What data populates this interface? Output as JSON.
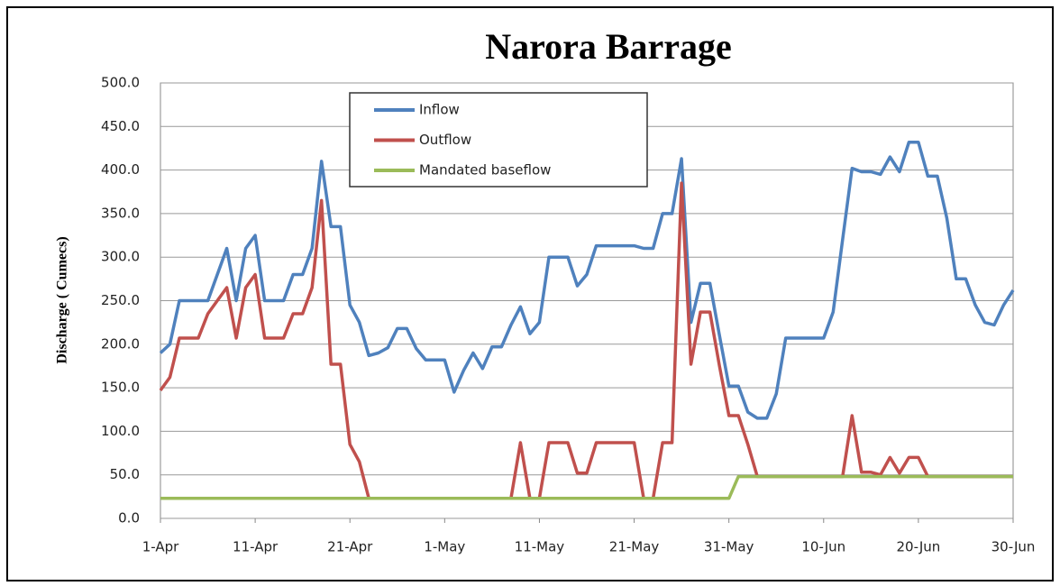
{
  "chart_data": {
    "type": "line",
    "title": "Narora Barrage",
    "y_label": "Discharge ( Cumecs)",
    "categories": [
      "1-Apr",
      null,
      null,
      null,
      null,
      null,
      null,
      null,
      null,
      null,
      "11-Apr",
      null,
      null,
      null,
      null,
      null,
      null,
      null,
      null,
      null,
      "21-Apr",
      null,
      null,
      null,
      null,
      null,
      null,
      null,
      null,
      null,
      "1-May",
      null,
      null,
      null,
      null,
      null,
      null,
      null,
      null,
      null,
      "11-May",
      null,
      null,
      null,
      null,
      null,
      null,
      null,
      null,
      null,
      "21-May",
      null,
      null,
      null,
      null,
      null,
      null,
      null,
      null,
      null,
      "31-May",
      null,
      null,
      null,
      null,
      null,
      null,
      null,
      null,
      null,
      "10-Jun",
      null,
      null,
      null,
      null,
      null,
      null,
      null,
      null,
      null,
      "20-Jun",
      null,
      null,
      null,
      null,
      null,
      null,
      null,
      null,
      null,
      "30-Jun"
    ],
    "series": [
      {
        "name": "Inflow",
        "color": "#4f81bd",
        "values": [
          190,
          200,
          250,
          250,
          250,
          250,
          280,
          310,
          250,
          310,
          325,
          250,
          250,
          250,
          280,
          280,
          310,
          410,
          335,
          335,
          245,
          225,
          187,
          190,
          196,
          218,
          218,
          195,
          182,
          182,
          182,
          145,
          170,
          190,
          172,
          197,
          197,
          222,
          243,
          212,
          225,
          300,
          300,
          300,
          267,
          280,
          313,
          313,
          313,
          313,
          313,
          310,
          310,
          350,
          350,
          413,
          225,
          270,
          270,
          210,
          152,
          152,
          122,
          115,
          115,
          143,
          207,
          207,
          207,
          207,
          207,
          237,
          320,
          402,
          398,
          398,
          395,
          415,
          398,
          432,
          432,
          393,
          393,
          345,
          275,
          275,
          245,
          225,
          222,
          245,
          262
        ]
      },
      {
        "name": "Outflow",
        "color": "#c0504d",
        "values": [
          147,
          162,
          207,
          207,
          207,
          235,
          250,
          265,
          207,
          265,
          280,
          207,
          207,
          207,
          235,
          235,
          265,
          365,
          177,
          177,
          85,
          65,
          23,
          23,
          23,
          23,
          23,
          23,
          23,
          23,
          23,
          23,
          23,
          23,
          23,
          23,
          23,
          23,
          87,
          23,
          23,
          87,
          87,
          87,
          52,
          52,
          87,
          87,
          87,
          87,
          87,
          23,
          23,
          87,
          87,
          385,
          177,
          237,
          237,
          175,
          118,
          118,
          85,
          48,
          48,
          48,
          48,
          48,
          48,
          48,
          48,
          48,
          48,
          118,
          53,
          53,
          50,
          70,
          52,
          70,
          70,
          48,
          48,
          48,
          48,
          48,
          48,
          48,
          48,
          48,
          48
        ]
      },
      {
        "name": "Mandated baseflow",
        "color": "#9bbb59",
        "values": [
          23,
          23,
          23,
          23,
          23,
          23,
          23,
          23,
          23,
          23,
          23,
          23,
          23,
          23,
          23,
          23,
          23,
          23,
          23,
          23,
          23,
          23,
          23,
          23,
          23,
          23,
          23,
          23,
          23,
          23,
          23,
          23,
          23,
          23,
          23,
          23,
          23,
          23,
          23,
          23,
          23,
          23,
          23,
          23,
          23,
          23,
          23,
          23,
          23,
          23,
          23,
          23,
          23,
          23,
          23,
          23,
          23,
          23,
          23,
          23,
          23,
          48,
          48,
          48,
          48,
          48,
          48,
          48,
          48,
          48,
          48,
          48,
          48,
          48,
          48,
          48,
          48,
          48,
          48,
          48,
          48,
          48,
          48,
          48,
          48,
          48,
          48,
          48,
          48,
          48,
          48
        ]
      }
    ],
    "ylim": [
      0,
      500
    ],
    "yticks": [
      {
        "value": 0,
        "label": "0.0"
      },
      {
        "value": 50,
        "label": "50.0"
      },
      {
        "value": 100,
        "label": "100.0"
      },
      {
        "value": 150,
        "label": "150.0"
      },
      {
        "value": 200,
        "label": "200.0"
      },
      {
        "value": 250,
        "label": "250.0"
      },
      {
        "value": 300,
        "label": "300.0"
      },
      {
        "value": 350,
        "label": "350.0"
      },
      {
        "value": 400,
        "label": "400.0"
      },
      {
        "value": 450,
        "label": "450.0"
      },
      {
        "value": 500,
        "label": "500.0"
      }
    ],
    "grid": true
  }
}
